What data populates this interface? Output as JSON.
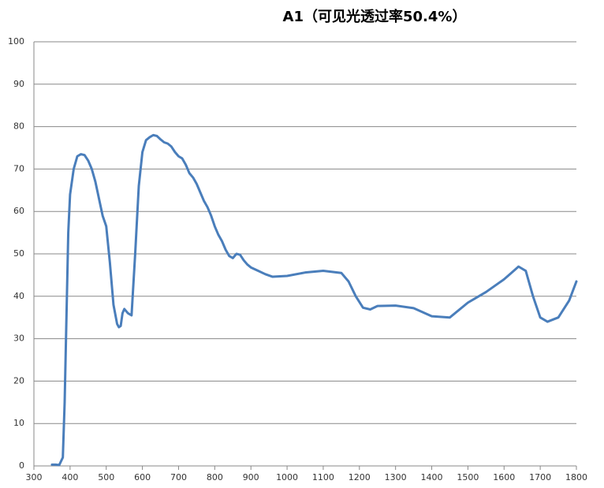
{
  "chart_data": {
    "type": "line",
    "title": "A1（可见光透过率50.4%）",
    "x": [
      350,
      360,
      370,
      380,
      385,
      390,
      395,
      400,
      410,
      420,
      430,
      440,
      450,
      460,
      470,
      480,
      490,
      500,
      510,
      520,
      530,
      535,
      540,
      545,
      550,
      560,
      570,
      580,
      590,
      600,
      610,
      620,
      630,
      640,
      650,
      660,
      670,
      680,
      690,
      700,
      710,
      720,
      730,
      740,
      750,
      760,
      770,
      780,
      790,
      800,
      810,
      820,
      830,
      840,
      850,
      860,
      870,
      880,
      890,
      900,
      920,
      940,
      960,
      1000,
      1050,
      1100,
      1150,
      1170,
      1190,
      1210,
      1230,
      1250,
      1300,
      1350,
      1400,
      1450,
      1500,
      1550,
      1600,
      1620,
      1640,
      1660,
      1680,
      1700,
      1720,
      1750,
      1780,
      1800
    ],
    "series": [
      {
        "name": "A1",
        "color": "#4a7ebb",
        "values": [
          0.3,
          0.3,
          0.2,
          2,
          15,
          35,
          55,
          64,
          70,
          73,
          73.5,
          73.3,
          72,
          70,
          67,
          63,
          59,
          56.5,
          48,
          38,
          33.5,
          32.7,
          33,
          36,
          37,
          36,
          35.5,
          50,
          66,
          74,
          76.8,
          77.5,
          78,
          77.8,
          77,
          76.3,
          76,
          75.3,
          74,
          73,
          72.5,
          71,
          69,
          68,
          66.5,
          64.5,
          62.5,
          61,
          59,
          56.5,
          54.5,
          53,
          51,
          49.5,
          49,
          50,
          49.8,
          48.5,
          47.5,
          46.8,
          46,
          45.2,
          44.6,
          44.8,
          45.6,
          46,
          45.5,
          43.5,
          40,
          37.3,
          36.9,
          37.7,
          37.8,
          37.2,
          35.3,
          35,
          38.5,
          41,
          44,
          45.5,
          47,
          46,
          40,
          35,
          34,
          35,
          39,
          43.5
        ]
      }
    ],
    "xlim": [
      300,
      1800
    ],
    "xticks": [
      300,
      400,
      500,
      600,
      700,
      800,
      900,
      1000,
      1100,
      1200,
      1300,
      1400,
      1500,
      1600,
      1700,
      1800
    ],
    "ylim": [
      0,
      100
    ],
    "yticks": [
      0,
      10,
      20,
      30,
      40,
      50,
      60,
      70,
      80,
      90,
      100
    ],
    "grid": true
  }
}
